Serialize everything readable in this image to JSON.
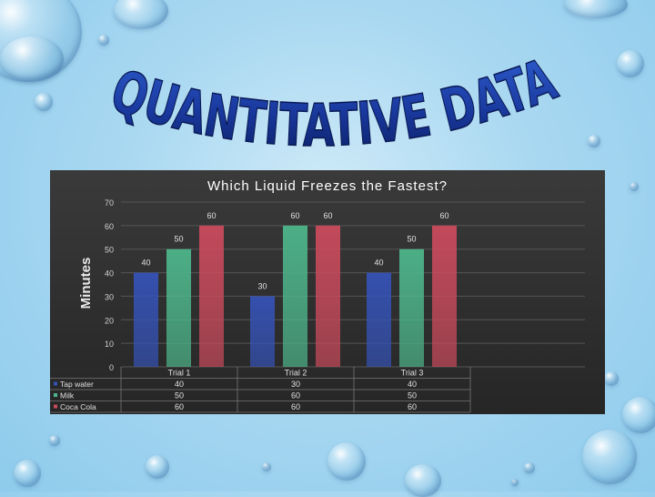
{
  "slide": {
    "headline": "QUANTITATIVE DATA"
  },
  "chart_data": {
    "type": "bar",
    "title": "Which Liquid Freezes the Fastest?",
    "ylabel": "Minutes",
    "xlabel": "",
    "ylim": [
      0,
      70
    ],
    "yticks": [
      0,
      10,
      20,
      30,
      40,
      50,
      60,
      70
    ],
    "categories": [
      "Trial 1",
      "Trial 2",
      "Trial 3"
    ],
    "series": [
      {
        "name": "Tap water",
        "values": [
          40,
          30,
          40
        ],
        "color": "#3552b5"
      },
      {
        "name": "Milk",
        "values": [
          50,
          60,
          50
        ],
        "color": "#4db58a"
      },
      {
        "name": "Coca Cola",
        "values": [
          60,
          60,
          60
        ],
        "color": "#c94a5c"
      }
    ],
    "data_labels": true,
    "data_table": true,
    "grid": true,
    "legend": "data-table"
  }
}
